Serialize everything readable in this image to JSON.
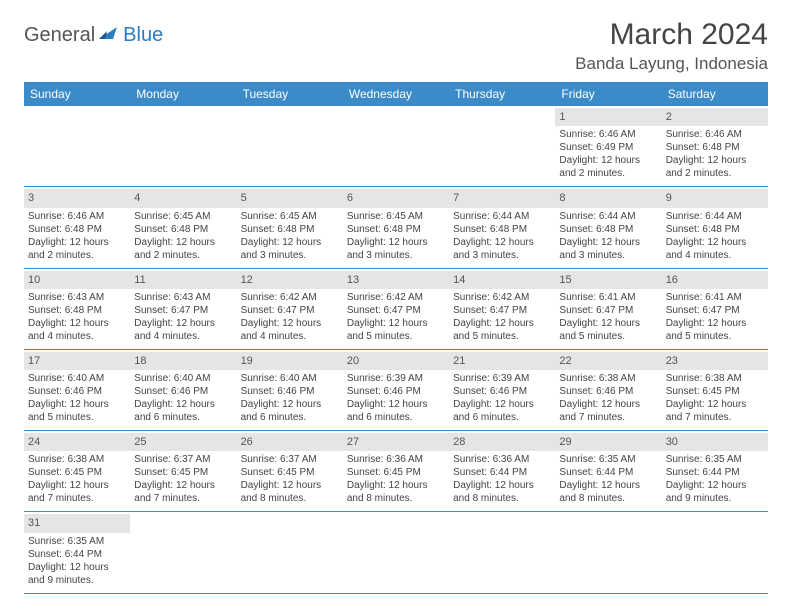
{
  "logo": {
    "word1": "General",
    "word2": "Blue"
  },
  "title": "March 2024",
  "location": "Banda Layung, Indonesia",
  "colors": {
    "header_bg": "#3b8bc9",
    "header_text": "#ffffff",
    "daynum_bg": "#e5e5e5",
    "cell_border": "#3b8bc9",
    "logo_accent": "#2b7cc0",
    "text": "#444444"
  },
  "weekdays": [
    "Sunday",
    "Monday",
    "Tuesday",
    "Wednesday",
    "Thursday",
    "Friday",
    "Saturday"
  ],
  "weeks": [
    [
      {
        "day": "",
        "lines": []
      },
      {
        "day": "",
        "lines": []
      },
      {
        "day": "",
        "lines": []
      },
      {
        "day": "",
        "lines": []
      },
      {
        "day": "",
        "lines": []
      },
      {
        "day": "1",
        "lines": [
          "Sunrise: 6:46 AM",
          "Sunset: 6:49 PM",
          "Daylight: 12 hours",
          "and 2 minutes."
        ]
      },
      {
        "day": "2",
        "lines": [
          "Sunrise: 6:46 AM",
          "Sunset: 6:48 PM",
          "Daylight: 12 hours",
          "and 2 minutes."
        ]
      }
    ],
    [
      {
        "day": "3",
        "lines": [
          "Sunrise: 6:46 AM",
          "Sunset: 6:48 PM",
          "Daylight: 12 hours",
          "and 2 minutes."
        ]
      },
      {
        "day": "4",
        "lines": [
          "Sunrise: 6:45 AM",
          "Sunset: 6:48 PM",
          "Daylight: 12 hours",
          "and 2 minutes."
        ]
      },
      {
        "day": "5",
        "lines": [
          "Sunrise: 6:45 AM",
          "Sunset: 6:48 PM",
          "Daylight: 12 hours",
          "and 3 minutes."
        ]
      },
      {
        "day": "6",
        "lines": [
          "Sunrise: 6:45 AM",
          "Sunset: 6:48 PM",
          "Daylight: 12 hours",
          "and 3 minutes."
        ]
      },
      {
        "day": "7",
        "lines": [
          "Sunrise: 6:44 AM",
          "Sunset: 6:48 PM",
          "Daylight: 12 hours",
          "and 3 minutes."
        ]
      },
      {
        "day": "8",
        "lines": [
          "Sunrise: 6:44 AM",
          "Sunset: 6:48 PM",
          "Daylight: 12 hours",
          "and 3 minutes."
        ]
      },
      {
        "day": "9",
        "lines": [
          "Sunrise: 6:44 AM",
          "Sunset: 6:48 PM",
          "Daylight: 12 hours",
          "and 4 minutes."
        ]
      }
    ],
    [
      {
        "day": "10",
        "lines": [
          "Sunrise: 6:43 AM",
          "Sunset: 6:48 PM",
          "Daylight: 12 hours",
          "and 4 minutes."
        ]
      },
      {
        "day": "11",
        "lines": [
          "Sunrise: 6:43 AM",
          "Sunset: 6:47 PM",
          "Daylight: 12 hours",
          "and 4 minutes."
        ]
      },
      {
        "day": "12",
        "lines": [
          "Sunrise: 6:42 AM",
          "Sunset: 6:47 PM",
          "Daylight: 12 hours",
          "and 4 minutes."
        ]
      },
      {
        "day": "13",
        "lines": [
          "Sunrise: 6:42 AM",
          "Sunset: 6:47 PM",
          "Daylight: 12 hours",
          "and 5 minutes."
        ]
      },
      {
        "day": "14",
        "lines": [
          "Sunrise: 6:42 AM",
          "Sunset: 6:47 PM",
          "Daylight: 12 hours",
          "and 5 minutes."
        ]
      },
      {
        "day": "15",
        "lines": [
          "Sunrise: 6:41 AM",
          "Sunset: 6:47 PM",
          "Daylight: 12 hours",
          "and 5 minutes."
        ]
      },
      {
        "day": "16",
        "lines": [
          "Sunrise: 6:41 AM",
          "Sunset: 6:47 PM",
          "Daylight: 12 hours",
          "and 5 minutes."
        ]
      }
    ],
    [
      {
        "day": "17",
        "lines": [
          "Sunrise: 6:40 AM",
          "Sunset: 6:46 PM",
          "Daylight: 12 hours",
          "and 5 minutes."
        ]
      },
      {
        "day": "18",
        "lines": [
          "Sunrise: 6:40 AM",
          "Sunset: 6:46 PM",
          "Daylight: 12 hours",
          "and 6 minutes."
        ]
      },
      {
        "day": "19",
        "lines": [
          "Sunrise: 6:40 AM",
          "Sunset: 6:46 PM",
          "Daylight: 12 hours",
          "and 6 minutes."
        ]
      },
      {
        "day": "20",
        "lines": [
          "Sunrise: 6:39 AM",
          "Sunset: 6:46 PM",
          "Daylight: 12 hours",
          "and 6 minutes."
        ]
      },
      {
        "day": "21",
        "lines": [
          "Sunrise: 6:39 AM",
          "Sunset: 6:46 PM",
          "Daylight: 12 hours",
          "and 6 minutes."
        ]
      },
      {
        "day": "22",
        "lines": [
          "Sunrise: 6:38 AM",
          "Sunset: 6:46 PM",
          "Daylight: 12 hours",
          "and 7 minutes."
        ]
      },
      {
        "day": "23",
        "lines": [
          "Sunrise: 6:38 AM",
          "Sunset: 6:45 PM",
          "Daylight: 12 hours",
          "and 7 minutes."
        ]
      }
    ],
    [
      {
        "day": "24",
        "lines": [
          "Sunrise: 6:38 AM",
          "Sunset: 6:45 PM",
          "Daylight: 12 hours",
          "and 7 minutes."
        ]
      },
      {
        "day": "25",
        "lines": [
          "Sunrise: 6:37 AM",
          "Sunset: 6:45 PM",
          "Daylight: 12 hours",
          "and 7 minutes."
        ]
      },
      {
        "day": "26",
        "lines": [
          "Sunrise: 6:37 AM",
          "Sunset: 6:45 PM",
          "Daylight: 12 hours",
          "and 8 minutes."
        ]
      },
      {
        "day": "27",
        "lines": [
          "Sunrise: 6:36 AM",
          "Sunset: 6:45 PM",
          "Daylight: 12 hours",
          "and 8 minutes."
        ]
      },
      {
        "day": "28",
        "lines": [
          "Sunrise: 6:36 AM",
          "Sunset: 6:44 PM",
          "Daylight: 12 hours",
          "and 8 minutes."
        ]
      },
      {
        "day": "29",
        "lines": [
          "Sunrise: 6:35 AM",
          "Sunset: 6:44 PM",
          "Daylight: 12 hours",
          "and 8 minutes."
        ]
      },
      {
        "day": "30",
        "lines": [
          "Sunrise: 6:35 AM",
          "Sunset: 6:44 PM",
          "Daylight: 12 hours",
          "and 9 minutes."
        ]
      }
    ],
    [
      {
        "day": "31",
        "lines": [
          "Sunrise: 6:35 AM",
          "Sunset: 6:44 PM",
          "Daylight: 12 hours",
          "and 9 minutes."
        ]
      },
      {
        "day": "",
        "lines": []
      },
      {
        "day": "",
        "lines": []
      },
      {
        "day": "",
        "lines": []
      },
      {
        "day": "",
        "lines": []
      },
      {
        "day": "",
        "lines": []
      },
      {
        "day": "",
        "lines": []
      }
    ]
  ]
}
